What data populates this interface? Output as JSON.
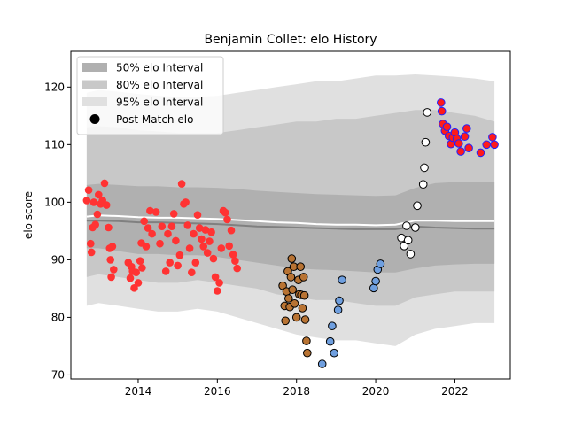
{
  "chart_data": {
    "type": "scatter",
    "title": "Benjamin Collet: elo History",
    "xlabel": "",
    "ylabel": "elo score",
    "xlim": [
      2012.3,
      2023.4
    ],
    "ylim": [
      69.3,
      126.2
    ],
    "xticks": [
      2014,
      2016,
      2018,
      2020,
      2022
    ],
    "yticks": [
      70,
      80,
      90,
      100,
      110,
      120
    ],
    "legend_position": "top-left",
    "legend": [
      {
        "label": "50% elo Interval",
        "kind": "patch",
        "color": "#b0b0b0"
      },
      {
        "label": "80% elo Interval",
        "kind": "patch",
        "color": "#c8c8c8"
      },
      {
        "label": "95% elo Interval",
        "kind": "patch",
        "color": "#e0e0e0"
      },
      {
        "label": "Post Match elo",
        "kind": "marker",
        "color": "#000000"
      }
    ],
    "bands": {
      "x": [
        2012.7,
        2013.0,
        2013.5,
        2014.0,
        2014.5,
        2015.0,
        2015.5,
        2016.0,
        2016.5,
        2017.0,
        2017.5,
        2018.0,
        2018.5,
        2019.0,
        2019.5,
        2020.0,
        2020.5,
        2021.0,
        2021.5,
        2022.0,
        2022.5,
        2023.0
      ],
      "lower95": [
        82.0,
        82.5,
        82.0,
        81.5,
        81.0,
        81.0,
        81.5,
        81.0,
        80.0,
        79.0,
        78.0,
        77.0,
        76.5,
        76.0,
        76.0,
        75.5,
        75.0,
        77.0,
        78.0,
        78.5,
        79.0,
        79.0
      ],
      "lower80": [
        87.0,
        87.5,
        87.0,
        86.5,
        86.0,
        86.0,
        86.5,
        86.0,
        85.5,
        85.0,
        84.0,
        83.5,
        83.0,
        83.0,
        82.5,
        82.0,
        82.0,
        83.5,
        84.0,
        84.5,
        84.5,
        84.5
      ],
      "lower50": [
        92.0,
        92.0,
        91.5,
        91.0,
        91.0,
        90.8,
        90.8,
        90.5,
        90.0,
        89.5,
        89.0,
        88.5,
        88.3,
        88.2,
        88.0,
        87.8,
        87.8,
        88.5,
        89.0,
        89.2,
        89.3,
        89.3
      ],
      "median": [
        96.8,
        96.8,
        96.7,
        96.5,
        96.5,
        96.4,
        96.3,
        96.2,
        96.0,
        95.8,
        95.7,
        95.6,
        95.5,
        95.4,
        95.3,
        95.3,
        95.3,
        95.8,
        95.6,
        95.5,
        95.4,
        95.4
      ],
      "mean": [
        97.5,
        97.7,
        97.6,
        97.4,
        97.3,
        97.3,
        97.2,
        97.1,
        96.9,
        96.7,
        96.5,
        96.4,
        96.2,
        96.1,
        96.1,
        96.0,
        96.1,
        96.8,
        96.8,
        96.7,
        96.7,
        96.7
      ],
      "upper50": [
        103.0,
        103.2,
        103.0,
        102.8,
        102.8,
        102.6,
        102.6,
        102.5,
        102.3,
        102.0,
        101.8,
        101.6,
        101.4,
        101.3,
        101.2,
        101.1,
        101.2,
        102.5,
        103.3,
        103.5,
        103.5,
        103.5
      ],
      "upper80": [
        113.0,
        113.2,
        113.0,
        112.5,
        112.3,
        112.0,
        112.0,
        112.0,
        112.5,
        113.0,
        113.5,
        114.0,
        114.0,
        114.5,
        114.5,
        115.0,
        115.5,
        116.0,
        116.0,
        115.5,
        115.0,
        114.0
      ],
      "upper95": [
        119.0,
        119.5,
        119.2,
        118.8,
        118.5,
        118.3,
        118.3,
        118.5,
        119.0,
        119.5,
        120.0,
        120.5,
        121.0,
        121.0,
        121.5,
        122.0,
        122.0,
        122.2,
        122.0,
        121.8,
        121.5,
        121.0
      ]
    },
    "series": [
      {
        "face": "#ff3333",
        "edge": "none",
        "points": [
          [
            2012.7,
            100.3
          ],
          [
            2012.75,
            102.1
          ],
          [
            2012.8,
            92.8
          ],
          [
            2012.82,
            91.3
          ],
          [
            2012.85,
            95.6
          ],
          [
            2012.88,
            100.0
          ],
          [
            2012.92,
            96.1
          ],
          [
            2012.97,
            97.9
          ],
          [
            2013.0,
            101.3
          ],
          [
            2013.05,
            99.7
          ],
          [
            2013.1,
            100.3
          ],
          [
            2013.15,
            103.3
          ],
          [
            2013.2,
            99.5
          ],
          [
            2013.25,
            95.6
          ],
          [
            2013.28,
            92.0
          ],
          [
            2013.3,
            90.0
          ],
          [
            2013.32,
            87.0
          ],
          [
            2013.35,
            92.3
          ],
          [
            2013.38,
            88.3
          ],
          [
            2013.75,
            89.5
          ],
          [
            2013.8,
            86.8
          ],
          [
            2013.83,
            88.8
          ],
          [
            2013.86,
            88.0
          ],
          [
            2013.9,
            85.1
          ],
          [
            2013.95,
            87.8
          ],
          [
            2014.0,
            86.0
          ],
          [
            2014.05,
            89.8
          ],
          [
            2014.08,
            92.9
          ],
          [
            2014.1,
            88.6
          ],
          [
            2014.15,
            96.7
          ],
          [
            2014.2,
            92.3
          ],
          [
            2014.25,
            95.5
          ],
          [
            2014.3,
            98.5
          ],
          [
            2014.35,
            94.5
          ],
          [
            2014.45,
            98.3
          ],
          [
            2014.55,
            92.8
          ],
          [
            2014.6,
            95.8
          ],
          [
            2014.7,
            88.0
          ],
          [
            2014.75,
            94.5
          ],
          [
            2014.8,
            89.5
          ],
          [
            2014.85,
            95.8
          ],
          [
            2014.9,
            98.0
          ],
          [
            2014.95,
            93.3
          ],
          [
            2015.0,
            89.0
          ],
          [
            2015.05,
            90.8
          ],
          [
            2015.1,
            103.2
          ],
          [
            2015.15,
            99.7
          ],
          [
            2015.2,
            100.0
          ],
          [
            2015.25,
            96.0
          ],
          [
            2015.3,
            92.0
          ],
          [
            2015.35,
            87.8
          ],
          [
            2015.4,
            94.5
          ],
          [
            2015.45,
            89.5
          ],
          [
            2015.5,
            97.8
          ],
          [
            2015.55,
            95.5
          ],
          [
            2015.6,
            93.6
          ],
          [
            2015.65,
            92.3
          ],
          [
            2015.7,
            95.2
          ],
          [
            2015.75,
            91.2
          ],
          [
            2015.8,
            93.2
          ],
          [
            2015.85,
            94.8
          ],
          [
            2015.9,
            90.2
          ],
          [
            2015.95,
            87.0
          ],
          [
            2016.0,
            84.6
          ],
          [
            2016.05,
            86.0
          ],
          [
            2016.1,
            92.0
          ],
          [
            2016.15,
            98.5
          ],
          [
            2016.2,
            98.2
          ],
          [
            2016.25,
            97.0
          ],
          [
            2016.3,
            92.4
          ],
          [
            2016.35,
            95.1
          ],
          [
            2016.4,
            90.9
          ],
          [
            2016.45,
            89.8
          ],
          [
            2016.5,
            88.5
          ]
        ]
      },
      {
        "face": "#b87333",
        "edge": "#000000",
        "points": [
          [
            2017.65,
            85.5
          ],
          [
            2017.7,
            82.0
          ],
          [
            2017.72,
            79.4
          ],
          [
            2017.75,
            84.5
          ],
          [
            2017.78,
            88.0
          ],
          [
            2017.8,
            83.3
          ],
          [
            2017.83,
            81.8
          ],
          [
            2017.86,
            87.0
          ],
          [
            2017.88,
            90.2
          ],
          [
            2017.9,
            84.8
          ],
          [
            2017.93,
            88.8
          ],
          [
            2017.95,
            82.4
          ],
          [
            2018.0,
            80.0
          ],
          [
            2018.05,
            86.5
          ],
          [
            2018.07,
            84.0
          ],
          [
            2018.1,
            88.8
          ],
          [
            2018.12,
            83.9
          ],
          [
            2018.15,
            81.6
          ],
          [
            2018.18,
            87.0
          ],
          [
            2018.2,
            83.8
          ],
          [
            2018.22,
            79.6
          ],
          [
            2018.25,
            75.9
          ],
          [
            2018.27,
            73.8
          ]
        ]
      },
      {
        "face": "#6f9fdf",
        "edge": "#000000",
        "points": [
          [
            2018.65,
            71.9
          ],
          [
            2018.85,
            75.8
          ],
          [
            2018.9,
            78.5
          ],
          [
            2018.95,
            73.8
          ],
          [
            2019.05,
            81.3
          ],
          [
            2019.08,
            82.9
          ],
          [
            2019.15,
            86.5
          ],
          [
            2019.95,
            85.1
          ],
          [
            2020.0,
            86.3
          ],
          [
            2020.05,
            88.3
          ],
          [
            2020.12,
            89.3
          ]
        ]
      },
      {
        "face": "#ffffff",
        "edge": "#000000",
        "points": [
          [
            2020.65,
            93.8
          ],
          [
            2020.72,
            92.4
          ],
          [
            2020.78,
            95.9
          ],
          [
            2020.82,
            93.4
          ],
          [
            2020.88,
            91.0
          ],
          [
            2021.0,
            95.6
          ],
          [
            2021.05,
            99.4
          ],
          [
            2021.2,
            103.1
          ],
          [
            2021.23,
            106.0
          ],
          [
            2021.26,
            110.4
          ],
          [
            2021.3,
            115.6
          ]
        ]
      },
      {
        "face": "#ff1a1a",
        "edge": "#2222ff",
        "points": [
          [
            2021.65,
            117.3
          ],
          [
            2021.67,
            115.8
          ],
          [
            2021.7,
            113.6
          ],
          [
            2021.75,
            112.4
          ],
          [
            2021.8,
            113.1
          ],
          [
            2021.85,
            111.5
          ],
          [
            2021.9,
            110.1
          ],
          [
            2021.95,
            111.2
          ],
          [
            2022.0,
            112.1
          ],
          [
            2022.05,
            111.0
          ],
          [
            2022.1,
            110.2
          ],
          [
            2022.15,
            108.8
          ],
          [
            2022.25,
            111.4
          ],
          [
            2022.3,
            112.8
          ],
          [
            2022.35,
            109.4
          ],
          [
            2022.65,
            108.6
          ],
          [
            2022.8,
            110.0
          ],
          [
            2022.95,
            111.3
          ],
          [
            2023.0,
            110.0
          ]
        ]
      }
    ]
  }
}
